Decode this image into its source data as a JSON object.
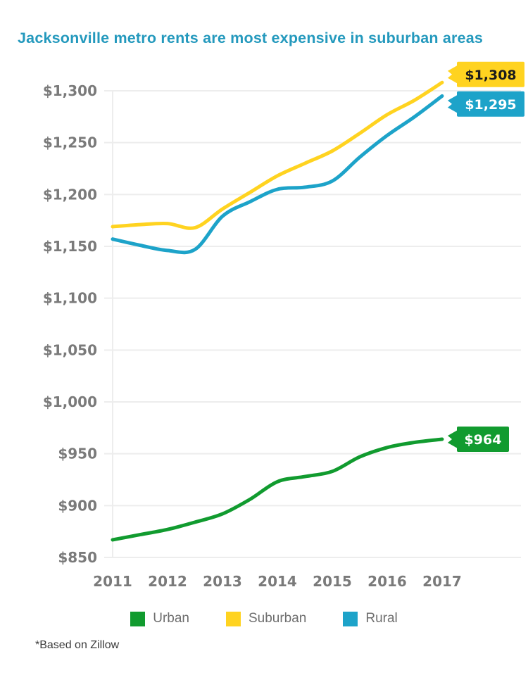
{
  "title": "Jacksonville metro rents are most expensive in suburban areas",
  "footnote": "*Based on Zillow",
  "colors": {
    "title": "#2499BD",
    "axis_text": "#7A7A7A",
    "gridline": "#EDEDED",
    "legend_text": "#6E6E6E",
    "footnote_text": "#3A3A3A",
    "background": "#FFFFFF"
  },
  "chart_data": {
    "type": "line",
    "title": "Jacksonville metro rents are most expensive in suburban areas",
    "xlabel": "",
    "ylabel": "",
    "x": [
      2011,
      2011.5,
      2012,
      2012.5,
      2013,
      2013.5,
      2014,
      2014.5,
      2015,
      2015.5,
      2016,
      2016.5,
      2017
    ],
    "x_tick_labels": [
      "2011",
      "2012",
      "2013",
      "2014",
      "2015",
      "2016",
      "2017"
    ],
    "y_ticks": [
      850,
      900,
      950,
      1000,
      1050,
      1100,
      1150,
      1200,
      1250,
      1300
    ],
    "y_tick_labels": [
      "$850",
      "$900",
      "$950",
      "$1,000",
      "$1,050",
      "$1,100",
      "$1,150",
      "$1,200",
      "$1,250",
      "$1,300"
    ],
    "ylim": [
      850,
      1300
    ],
    "grid": "horizontal",
    "legend_position": "bottom",
    "series": [
      {
        "name": "Urban",
        "color": "#119B2F",
        "values": [
          867,
          872,
          877,
          884,
          892,
          906,
          923,
          928,
          933,
          947,
          956,
          961,
          964
        ],
        "end_label": "$964",
        "end_label_text_color": "#FFFFFF"
      },
      {
        "name": "Suburban",
        "color": "#FFD320",
        "values": [
          1169,
          1171,
          1172,
          1168,
          1186,
          1202,
          1218,
          1230,
          1242,
          1259,
          1277,
          1291,
          1308
        ],
        "end_label": "$1,308",
        "end_label_text_color": "#1C1C1C"
      },
      {
        "name": "Rural",
        "color": "#1DA3C9",
        "values": [
          1157,
          1151,
          1146,
          1147,
          1179,
          1193,
          1205,
          1207,
          1213,
          1236,
          1257,
          1275,
          1295
        ],
        "end_label": "$1,295",
        "end_label_text_color": "#FFFFFF"
      }
    ]
  }
}
